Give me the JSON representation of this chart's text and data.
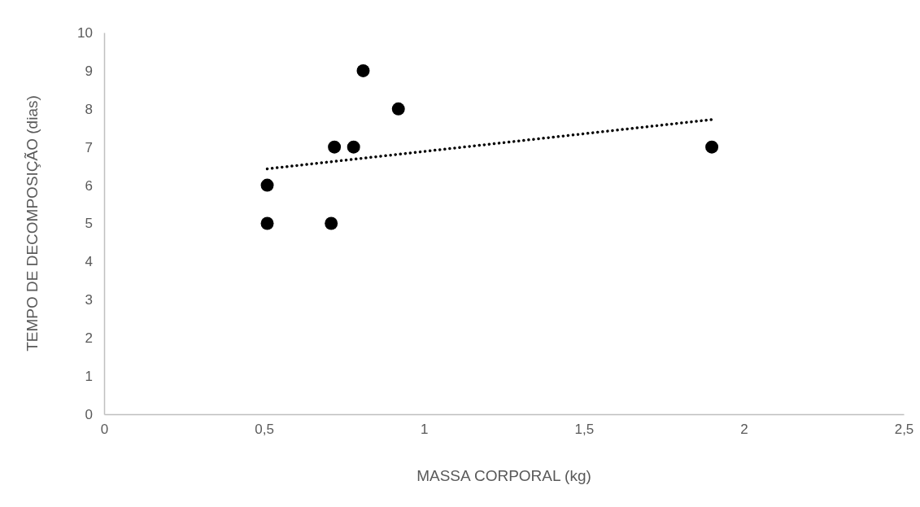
{
  "chart_data": {
    "type": "scatter",
    "xlabel": "MASSA CORPORAL (kg)",
    "ylabel": "TEMPO DE DECOMPOSIÇÃO (dias)",
    "xlim": [
      0,
      2.5
    ],
    "xticks": [
      0,
      {
        "value": 0.5,
        "label": "0,5"
      },
      1,
      {
        "value": 1.5,
        "label": "1,5"
      },
      2,
      {
        "value": 2.5,
        "label": "2,5"
      }
    ],
    "ylim": [
      0,
      10
    ],
    "yticks": [
      0,
      1,
      2,
      3,
      4,
      5,
      6,
      7,
      8,
      9,
      10
    ],
    "grid": false,
    "series": [
      {
        "marker": "circle",
        "color": "#000000",
        "x": [
          0.51,
          0.51,
          0.71,
          0.72,
          0.78,
          0.81,
          0.92,
          1.9
        ],
        "values": [
          6,
          5,
          5,
          7,
          7,
          9,
          8,
          7
        ]
      },
      {
        "type": "line",
        "color": "#000000",
        "line_style": "dotted",
        "x": [
          0.51,
          1.9
        ],
        "values": [
          6.43,
          7.72
        ]
      }
    ]
  }
}
